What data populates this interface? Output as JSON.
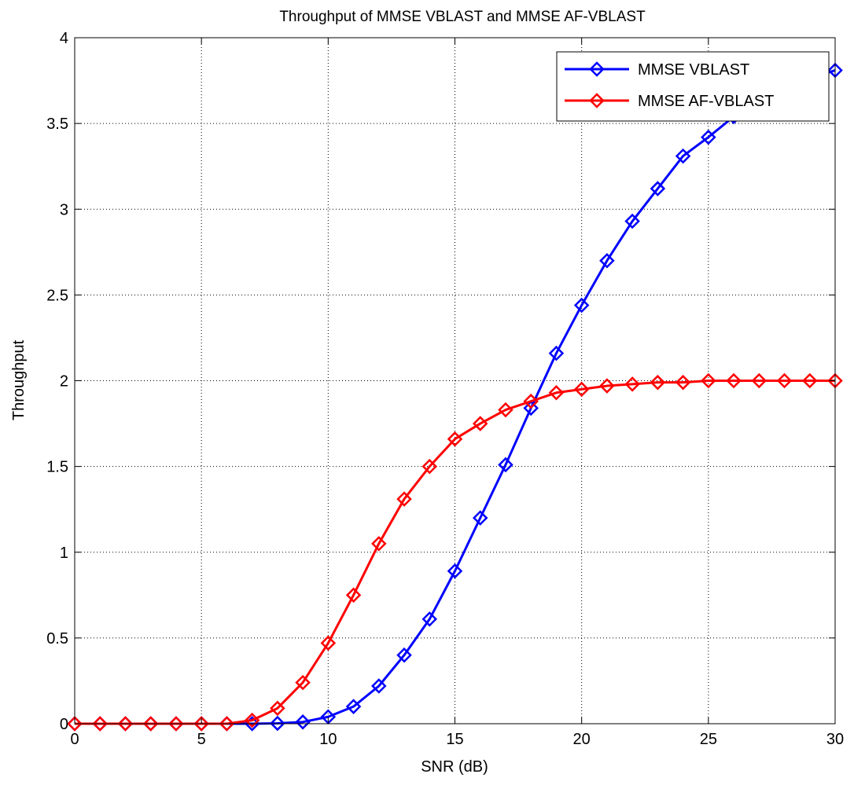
{
  "chart_data": {
    "type": "line",
    "title": "Throughput of MMSE VBLAST and MMSE AF-VBLAST",
    "xlabel": "SNR (dB)",
    "ylabel": "Throughput",
    "xlim": [
      0,
      30
    ],
    "ylim": [
      0,
      4
    ],
    "xticks": [
      0,
      5,
      10,
      15,
      20,
      25,
      30
    ],
    "yticks": [
      0,
      0.5,
      1,
      1.5,
      2,
      2.5,
      3,
      3.5,
      4
    ],
    "xtick_labels": [
      "0",
      "5",
      "10",
      "15",
      "20",
      "25",
      "30"
    ],
    "ytick_labels": [
      "0",
      "0.5",
      "1",
      "1.5",
      "2",
      "2.5",
      "3",
      "3.5",
      "4"
    ],
    "grid": true,
    "legend_position": "top-right",
    "marker": "diamond",
    "x": [
      0,
      1,
      2,
      3,
      4,
      5,
      6,
      7,
      8,
      9,
      10,
      11,
      12,
      13,
      14,
      15,
      16,
      17,
      18,
      19,
      20,
      21,
      22,
      23,
      24,
      25,
      26,
      27,
      28,
      29,
      30
    ],
    "series": [
      {
        "name": "MMSE VBLAST",
        "color": "#0000ff",
        "values": [
          0,
          0,
          0,
          0,
          0,
          0,
          0,
          0,
          0.002,
          0.01,
          0.04,
          0.1,
          0.22,
          0.4,
          0.61,
          0.89,
          1.2,
          1.51,
          1.84,
          2.16,
          2.44,
          2.7,
          2.93,
          3.12,
          3.31,
          3.42,
          3.54,
          3.62,
          3.7,
          3.76,
          3.81
        ]
      },
      {
        "name": "MMSE AF-VBLAST",
        "color": "#ff0000",
        "values": [
          0,
          0,
          0,
          0,
          0,
          0,
          0,
          0.02,
          0.09,
          0.24,
          0.47,
          0.75,
          1.05,
          1.31,
          1.5,
          1.66,
          1.75,
          1.83,
          1.88,
          1.93,
          1.95,
          1.97,
          1.98,
          1.99,
          1.99,
          2.0,
          2.0,
          2.0,
          2.0,
          2.0,
          2.0
        ]
      }
    ]
  }
}
